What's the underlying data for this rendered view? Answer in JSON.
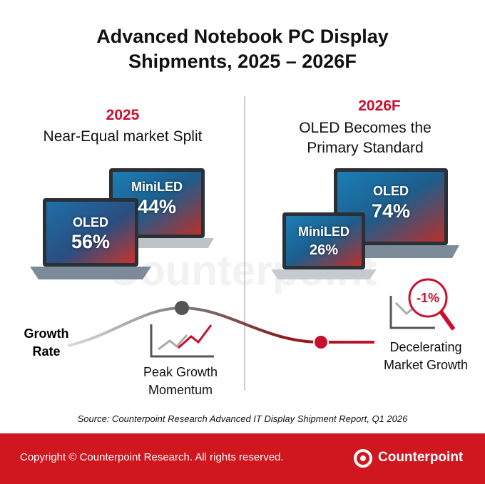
{
  "header": {
    "title": "Advanced Notebook PC Display Shipments, 2025 – 2026F"
  },
  "panels": [
    {
      "year": "2025",
      "headline": "Near-Equal market Split",
      "laptops": [
        {
          "label": "MiniLED",
          "share": "44%"
        },
        {
          "label": "OLED",
          "share": "56%"
        }
      ]
    },
    {
      "year": "2026F",
      "headline": "OLED Becomes the Primary Standard",
      "laptops": [
        {
          "label": "OLED",
          "share": "74%"
        },
        {
          "label": "MiniLED",
          "share": "26%"
        }
      ]
    }
  ],
  "growth": {
    "axis_label": "Growth Rate",
    "peak": "Peak Growth Momentum",
    "decline": "Decelerating Market Growth",
    "decline_badge": "-1%"
  },
  "watermark": "Counterpoint",
  "source": "Source: Counterpoint Research Advanced IT Display Shipment Report, Q1 2026",
  "footer": {
    "copyright": "Copyright © Counterpoint Research. All rights reserved.",
    "brand": "Counterpoint"
  }
}
